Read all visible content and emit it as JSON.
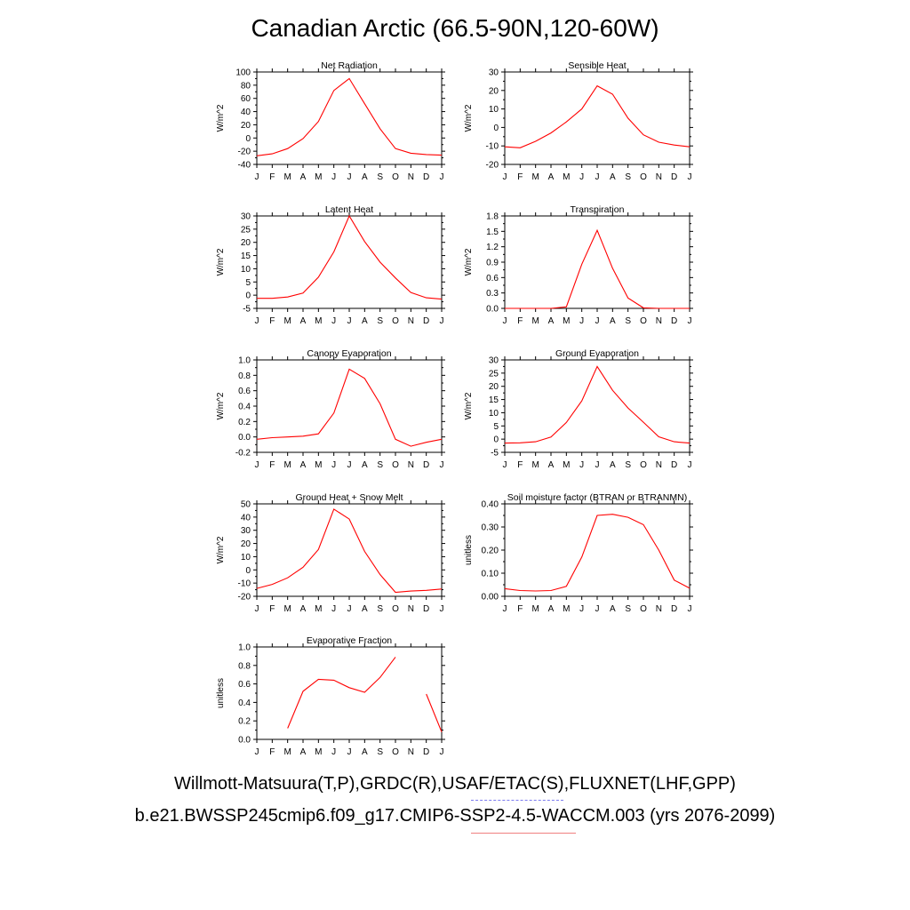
{
  "title": "Canadian Arctic (66.5-90N,120-60W)",
  "footer_line1": "Willmott-Matsuura(T,P),GRDC(R),USAF/ETAC(S),FLUXNET(LHF,GPP)",
  "footer_line2": "b.e21.BWSSP245cmip6.f09_g17.CMIP6-SSP2-4.5-WACCM.003 (yrs 2076-2099)",
  "colors": {
    "line": "#ff0000",
    "axis": "#000000",
    "legend_obs": "#7b7bf0",
    "legend_model": "#f08080"
  },
  "chart_data": [
    {
      "type": "line",
      "title": "Net Radiation",
      "ylabel": "W/m^2",
      "categories": [
        "J",
        "F",
        "M",
        "A",
        "M",
        "J",
        "J",
        "A",
        "S",
        "O",
        "N",
        "D",
        "J"
      ],
      "ylim": [
        -40,
        100
      ],
      "yticks": [
        -40,
        -20,
        0,
        20,
        40,
        60,
        80,
        100
      ],
      "ytick_labels": [
        "-40",
        "-20",
        "0",
        "20",
        "40",
        "60",
        "80",
        "100"
      ],
      "values": [
        -27,
        -24,
        -16,
        -1,
        25,
        72,
        90,
        52,
        14,
        -16,
        -23,
        -25,
        -26
      ]
    },
    {
      "type": "line",
      "title": "Sensible Heat",
      "ylabel": "W/m^2",
      "categories": [
        "J",
        "F",
        "M",
        "A",
        "M",
        "J",
        "J",
        "A",
        "S",
        "O",
        "N",
        "D",
        "J"
      ],
      "ylim": [
        -20,
        30
      ],
      "yticks": [
        -20,
        -10,
        0,
        10,
        20,
        30
      ],
      "ytick_labels": [
        "-20",
        "-10",
        "0",
        "10",
        "20",
        "30"
      ],
      "values": [
        -10.5,
        -11,
        -7.5,
        -3,
        3,
        10,
        22.5,
        18,
        5,
        -4,
        -8,
        -9.5,
        -10.5
      ]
    },
    {
      "type": "line",
      "title": "Latent Heat",
      "ylabel": "W/m^2",
      "categories": [
        "J",
        "F",
        "M",
        "A",
        "M",
        "J",
        "J",
        "A",
        "S",
        "O",
        "N",
        "D",
        "J"
      ],
      "ylim": [
        -5,
        30
      ],
      "yticks": [
        -5,
        0,
        5,
        10,
        15,
        20,
        25,
        30
      ],
      "ytick_labels": [
        "-5",
        "0",
        "5",
        "10",
        "15",
        "20",
        "25",
        "30"
      ],
      "values": [
        -1.2,
        -1.2,
        -0.7,
        0.8,
        6.8,
        16.4,
        30,
        20.3,
        12.5,
        6.5,
        1,
        -1,
        -1.5
      ]
    },
    {
      "type": "line",
      "title": "Transpiration",
      "ylabel": "W/m^2",
      "categories": [
        "J",
        "F",
        "M",
        "A",
        "M",
        "J",
        "J",
        "A",
        "S",
        "O",
        "N",
        "D",
        "J"
      ],
      "ylim": [
        0,
        1.8
      ],
      "yticks": [
        0,
        0.3,
        0.6,
        0.9,
        1.2,
        1.5,
        1.8
      ],
      "ytick_labels": [
        "0.0",
        "0.3",
        "0.6",
        "0.9",
        "1.2",
        "1.5",
        "1.8"
      ],
      "values": [
        0,
        0,
        0,
        0,
        0.03,
        0.86,
        1.52,
        0.78,
        0.2,
        0.01,
        0,
        0,
        0
      ]
    },
    {
      "type": "line",
      "title": "Canopy Evaporation",
      "ylabel": "W/m^2",
      "categories": [
        "J",
        "F",
        "M",
        "A",
        "M",
        "J",
        "J",
        "A",
        "S",
        "O",
        "N",
        "D",
        "J"
      ],
      "ylim": [
        -0.2,
        1.0
      ],
      "yticks": [
        -0.2,
        0,
        0.2,
        0.4,
        0.6,
        0.8,
        1.0
      ],
      "ytick_labels": [
        "-0.2",
        "0.0",
        "0.2",
        "0.4",
        "0.6",
        "0.8",
        "1.0"
      ],
      "values": [
        -0.03,
        -0.01,
        0,
        0.01,
        0.04,
        0.31,
        0.88,
        0.76,
        0.43,
        -0.03,
        -0.12,
        -0.07,
        -0.03
      ]
    },
    {
      "type": "line",
      "title": "Ground Evaporation",
      "ylabel": "W/m^2",
      "categories": [
        "J",
        "F",
        "M",
        "A",
        "M",
        "J",
        "J",
        "A",
        "S",
        "O",
        "N",
        "D",
        "J"
      ],
      "ylim": [
        -5,
        30
      ],
      "yticks": [
        -5,
        0,
        5,
        10,
        15,
        20,
        25,
        30
      ],
      "ytick_labels": [
        "-5",
        "0",
        "5",
        "10",
        "15",
        "20",
        "25",
        "30"
      ],
      "values": [
        -1.5,
        -1.4,
        -1,
        0.8,
        6.3,
        14.5,
        27.5,
        18.5,
        11.8,
        6.4,
        0.9,
        -1,
        -1.5
      ]
    },
    {
      "type": "line",
      "title": "Ground Heat + Snow Melt",
      "ylabel": "W/m^2",
      "categories": [
        "J",
        "F",
        "M",
        "A",
        "M",
        "J",
        "J",
        "A",
        "S",
        "O",
        "N",
        "D",
        "J"
      ],
      "ylim": [
        -20,
        50
      ],
      "yticks": [
        -20,
        -10,
        0,
        10,
        20,
        30,
        40,
        50
      ],
      "ytick_labels": [
        "-20",
        "-10",
        "0",
        "10",
        "20",
        "30",
        "40",
        "50"
      ],
      "values": [
        -14,
        -11,
        -6,
        2,
        15.5,
        46,
        38.5,
        14,
        -3.5,
        -17,
        -16,
        -15.5,
        -14.5
      ]
    },
    {
      "type": "line",
      "title": "Soil moisture factor (BTRAN or BTRANMN)",
      "ylabel": "unitless",
      "categories": [
        "J",
        "F",
        "M",
        "A",
        "M",
        "J",
        "J",
        "A",
        "S",
        "O",
        "N",
        "D",
        "J"
      ],
      "ylim": [
        0,
        0.4
      ],
      "yticks": [
        0,
        0.1,
        0.2,
        0.3,
        0.4
      ],
      "ytick_labels": [
        "0.00",
        "0.10",
        "0.20",
        "0.30",
        "0.40"
      ],
      "values": [
        0.033,
        0.025,
        0.023,
        0.025,
        0.043,
        0.17,
        0.35,
        0.355,
        0.342,
        0.31,
        0.2,
        0.07,
        0.035
      ]
    },
    {
      "type": "line",
      "title": "Evaporative Fraction",
      "ylabel": "unitless",
      "categories": [
        "J",
        "F",
        "M",
        "A",
        "M",
        "J",
        "J",
        "A",
        "S",
        "O",
        "N",
        "D",
        "J"
      ],
      "ylim": [
        0,
        1.0
      ],
      "yticks": [
        0,
        0.2,
        0.4,
        0.6,
        0.8,
        1.0
      ],
      "ytick_labels": [
        "0.0",
        "0.2",
        "0.4",
        "0.6",
        "0.8",
        "1.0"
      ],
      "values": [
        null,
        null,
        0.12,
        0.52,
        0.65,
        0.64,
        0.56,
        0.51,
        0.67,
        0.89,
        null,
        0.49,
        0.08
      ]
    }
  ]
}
